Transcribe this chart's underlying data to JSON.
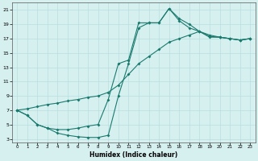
{
  "xlabel": "Humidex (Indice chaleur)",
  "bg_color": "#d6f0f0",
  "grid_color": "#b8dede",
  "line_color": "#1a7a6e",
  "xlim": [
    -0.5,
    23.5
  ],
  "ylim": [
    2.5,
    22
  ],
  "xticks": [
    0,
    1,
    2,
    3,
    4,
    5,
    6,
    7,
    8,
    9,
    10,
    11,
    12,
    13,
    14,
    15,
    16,
    17,
    18,
    19,
    20,
    21,
    22,
    23
  ],
  "yticks": [
    3,
    5,
    7,
    9,
    11,
    13,
    15,
    17,
    19,
    21
  ],
  "curve1_x": [
    0,
    1,
    2,
    3,
    4,
    5,
    6,
    7,
    8,
    9,
    10,
    11,
    12,
    13,
    14,
    15,
    16,
    17,
    18,
    19,
    20,
    21,
    22,
    23
  ],
  "curve1_y": [
    7.0,
    6.3,
    5.0,
    4.5,
    4.3,
    4.3,
    4.5,
    4.8,
    5.0,
    8.5,
    13.5,
    14.0,
    19.2,
    19.2,
    19.2,
    21.2,
    19.8,
    19.0,
    18.0,
    17.2,
    17.2,
    17.0,
    16.8,
    17.0
  ],
  "curve2_x": [
    0,
    1,
    2,
    3,
    4,
    5,
    6,
    7,
    8,
    9,
    10,
    11,
    12,
    13,
    14,
    15,
    16,
    17,
    18,
    19,
    20,
    21,
    22,
    23
  ],
  "curve2_y": [
    7.0,
    7.2,
    7.5,
    7.8,
    8.0,
    8.3,
    8.5,
    8.8,
    9.0,
    9.5,
    10.5,
    12.0,
    13.5,
    14.5,
    15.5,
    16.5,
    17.0,
    17.5,
    18.0,
    17.5,
    17.2,
    17.0,
    16.8,
    17.0
  ],
  "curve3_x": [
    0,
    1,
    2,
    3,
    4,
    5,
    6,
    7,
    8,
    9,
    10,
    11,
    12,
    13,
    14,
    15,
    16,
    17,
    18,
    19,
    20,
    21,
    22,
    23
  ],
  "curve3_y": [
    7.0,
    6.3,
    5.0,
    4.5,
    3.8,
    3.5,
    3.3,
    3.2,
    3.2,
    3.5,
    9.0,
    13.5,
    18.5,
    19.2,
    19.2,
    21.2,
    19.5,
    18.5,
    18.0,
    17.3,
    17.2,
    17.0,
    16.8,
    17.0
  ]
}
